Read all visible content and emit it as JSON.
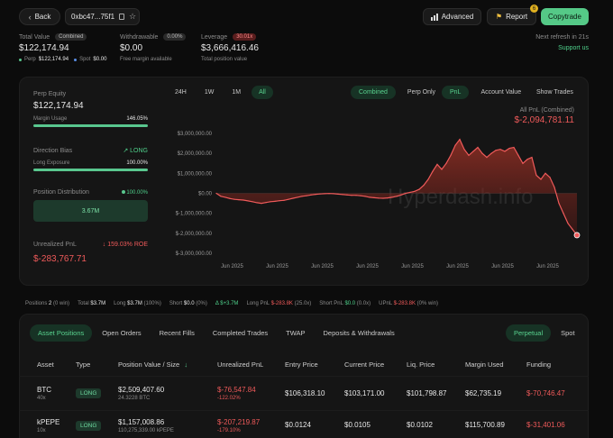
{
  "header": {
    "back_label": "Back",
    "address": "0xbc47...75f1",
    "advanced_label": "Advanced",
    "report_label": "Report",
    "report_badge": "6",
    "copytrade_label": "Copytrade",
    "refresh_text": "Next refresh in 21s",
    "support_label": "Support us"
  },
  "summary": {
    "total_value_label": "Total Value",
    "total_value_badge": "Combined",
    "total_value": "$122,174.94",
    "perp_label": "Perp",
    "perp_value": "$122,174.94",
    "spot_label": "Spot",
    "spot_value": "$0.00",
    "withdrawable_label": "Withdrawable",
    "withdrawable_badge": "0.00%",
    "withdrawable_value": "$0.00",
    "withdrawable_sub": "Free margin available",
    "leverage_label": "Leverage",
    "leverage_badge": "30.01x",
    "leverage_value": "$3,666,416.46",
    "leverage_sub": "Total position value"
  },
  "left_panel": {
    "perp_equity_label": "Perp Equity",
    "perp_equity_value": "$122,174.94",
    "margin_usage_label": "Margin Usage",
    "margin_usage_value": "146.05%",
    "margin_usage_fraction": 1.0,
    "direction_bias_label": "Direction Bias",
    "direction_bias_value": "LONG",
    "long_exposure_label": "Long Exposure",
    "long_exposure_value": "100.00%",
    "long_exposure_fraction": 1.0,
    "position_distribution_label": "Position Distribution",
    "position_distribution_value": "100.00%",
    "distribution_bar_value": "3.67M",
    "unrealized_pnl_label": "Unrealized PnL",
    "unrealized_pnl_roe": "159.03% ROE",
    "unrealized_pnl_value": "$-283,767.71"
  },
  "chart_controls": {
    "ranges": [
      "24H",
      "1W",
      "1M",
      "All"
    ],
    "active_range": "All",
    "scope_tabs": [
      "Combined",
      "Perp Only"
    ],
    "active_scope": "Combined",
    "metric_tabs": [
      "PnL",
      "Account Value"
    ],
    "active_metric": "PnL",
    "show_trades_label": "Show Trades",
    "summary_label": "All PnL (Combined)",
    "summary_value": "$-2,094,781.11",
    "watermark": "Hyperdash.info"
  },
  "chart_data": {
    "type": "area",
    "title": "",
    "xlabel": "",
    "ylabel": "",
    "y_tick_labels": [
      "$3,000,000.00",
      "$2,000,000.00",
      "$1,000,000.00",
      "$0.00",
      "$-1,000,000.00",
      "$-2,000,000.00",
      "$-3,000,000.00"
    ],
    "ylim": [
      -3000000,
      3000000
    ],
    "x_tick_labels": [
      "Jun 2025",
      "Jun 2025",
      "Jun 2025",
      "Jun 2025",
      "Jun 2025",
      "Jun 2025",
      "Jun 2025",
      "Jun 2025"
    ],
    "x": [
      0,
      1,
      2,
      3,
      4,
      5,
      6,
      7,
      8,
      9,
      10,
      11,
      12,
      13,
      14,
      15,
      16,
      17,
      18,
      19,
      20,
      21,
      22,
      23,
      24,
      25,
      26,
      27,
      28,
      29,
      30,
      31,
      32,
      33,
      34,
      35,
      36,
      37,
      38,
      39,
      40,
      41,
      42,
      43,
      44,
      45,
      46,
      47,
      48,
      49,
      50,
      51,
      52,
      53,
      54,
      55,
      56,
      57,
      58,
      59,
      60,
      61,
      62,
      63,
      64,
      65,
      66,
      67,
      68,
      69,
      70,
      71,
      72,
      73,
      74,
      75,
      76,
      77,
      78,
      79,
      80
    ],
    "values": [
      0,
      -150000,
      -200000,
      -260000,
      -300000,
      -320000,
      -340000,
      -380000,
      -420000,
      -470000,
      -500000,
      -460000,
      -420000,
      -400000,
      -370000,
      -350000,
      -300000,
      -250000,
      -200000,
      -150000,
      -120000,
      -80000,
      -50000,
      -30000,
      -20000,
      -10000,
      -20000,
      -40000,
      -60000,
      -80000,
      -100000,
      -100000,
      -120000,
      -150000,
      -200000,
      -220000,
      -240000,
      -250000,
      -230000,
      -200000,
      -150000,
      -80000,
      0,
      50000,
      100000,
      200000,
      400000,
      700000,
      1100000,
      1450000,
      1200000,
      1500000,
      1900000,
      2400000,
      2700000,
      2200000,
      1900000,
      2100000,
      2300000,
      2000000,
      1800000,
      2000000,
      2150000,
      2200000,
      2100000,
      2250000,
      2300000,
      1900000,
      1500000,
      1700000,
      1800000,
      900000,
      700000,
      1000000,
      800000,
      300000,
      -500000,
      -1000000,
      -1500000,
      -1800000,
      -2094781
    ],
    "grid": false,
    "legend": "none"
  },
  "positions_bar": {
    "positions_label": "Positions",
    "positions_value": "2",
    "positions_win": "(0 win)",
    "total_label": "Total",
    "total_value": "$3.7M",
    "long_label": "Long",
    "long_value": "$3.7M",
    "long_pct": "(100%)",
    "short_label": "Short",
    "short_value": "$0.0",
    "short_pct": "(0%)",
    "delta_value": "$+3.7M",
    "long_pnl_label": "Long PnL",
    "long_pnl_value": "$-283.8K",
    "long_pnl_win": "(25.0x)",
    "short_pnl_label": "Short PnL",
    "short_pnl_value": "$0.0",
    "short_pnl_win": "(0.0x)",
    "upnl_label": "UPnL",
    "upnl_value": "$-283.8K",
    "upnl_win": "(0% win)"
  },
  "positions_tabs": {
    "tabs": [
      "Asset Positions",
      "Open Orders",
      "Recent Fills",
      "Completed Trades",
      "TWAP",
      "Deposits & Withdrawals"
    ],
    "active_tab": "Asset Positions",
    "market_tabs": [
      "Perpetual",
      "Spot"
    ],
    "active_market": "Perpetual"
  },
  "table": {
    "headers": [
      "Asset",
      "Type",
      "Position Value / Size",
      "Unrealized PnL",
      "Entry Price",
      "Current Price",
      "Liq. Price",
      "Margin Used",
      "Funding"
    ],
    "rows": [
      {
        "asset": "BTC",
        "leverage": "40x",
        "type": "LONG",
        "position_value": "$2,509,407.60",
        "size": "24.3228 BTC",
        "upnl": "$-76,547.84",
        "upnl_pct": "-122.02%",
        "entry": "$106,318.10",
        "current": "$103,171.00",
        "liq": "$101,798.87",
        "margin": "$62,735.19",
        "funding": "$-70,746.47"
      },
      {
        "asset": "kPEPE",
        "leverage": "10x",
        "type": "LONG",
        "position_value": "$1,157,008.86",
        "size": "110,275,339.00 kPEPE",
        "upnl": "$-207,219.87",
        "upnl_pct": "-179.10%",
        "entry": "$0.0124",
        "current": "$0.0105",
        "liq": "$0.0102",
        "margin": "$115,700.89",
        "funding": "$-31,401.06"
      }
    ]
  },
  "colors": {
    "accent_green": "#4fd18b",
    "negative_red": "#ef5a5a",
    "background": "#0c0c0c",
    "panel": "#151515"
  }
}
